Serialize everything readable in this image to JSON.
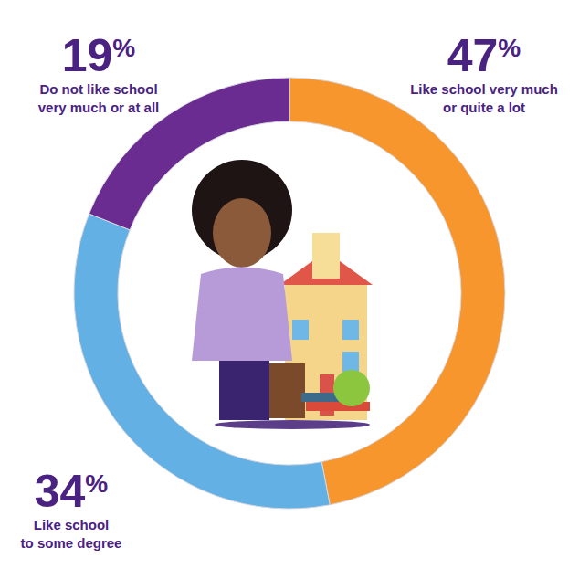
{
  "chart_data": {
    "type": "donut",
    "categories": [
      "Like school very much or quite a lot",
      "Like school to some degree",
      "Do not like school very much or at all"
    ],
    "values": [
      47,
      34,
      19
    ],
    "value_labels": [
      "47%",
      "34%",
      "19%"
    ],
    "colors": [
      "#f7962c",
      "#62b0e4",
      "#6a2c91"
    ],
    "data_labels": true
  }
}
